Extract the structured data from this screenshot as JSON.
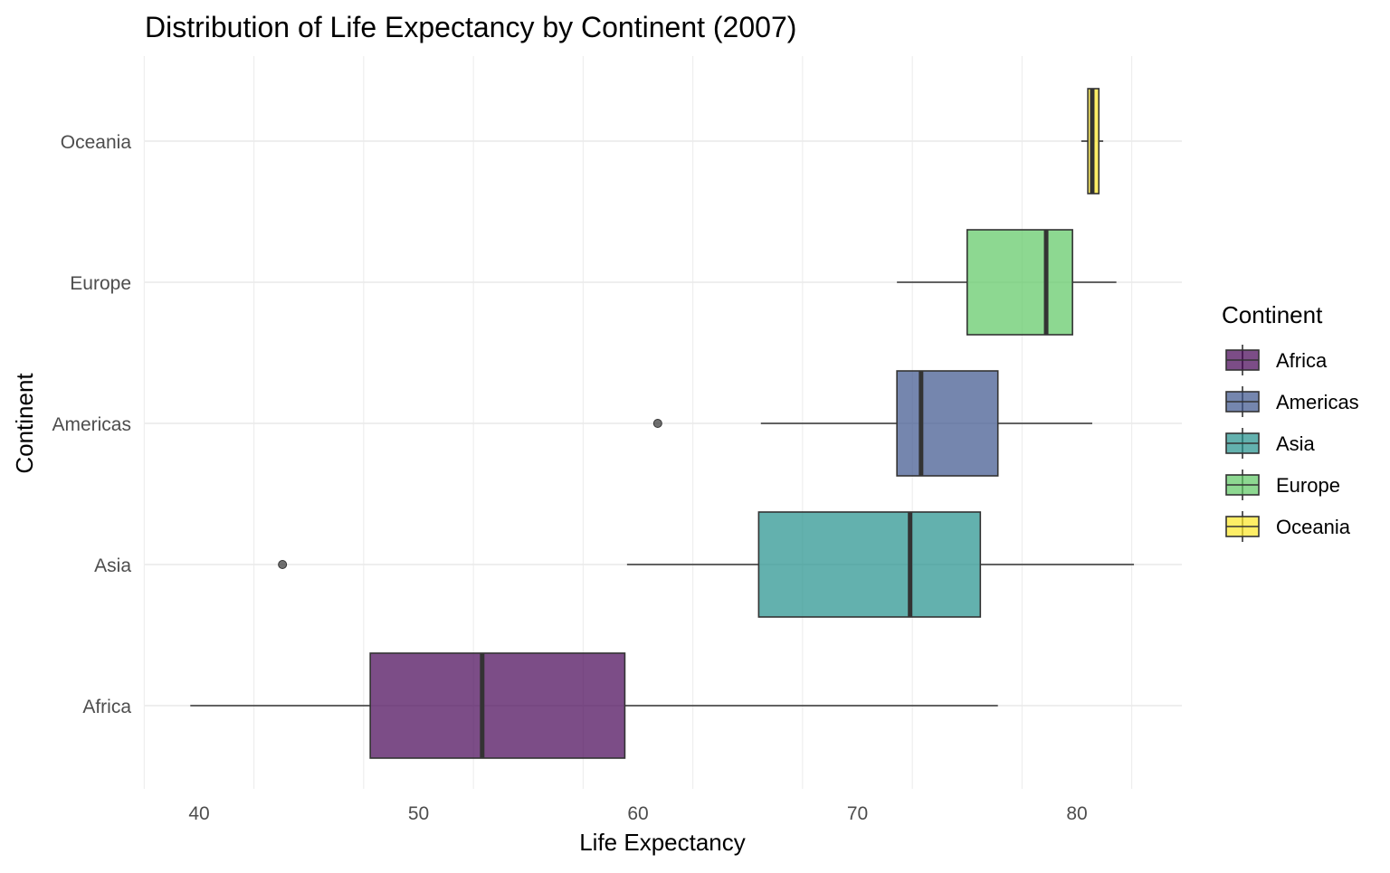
{
  "chart_data": {
    "type": "boxplot",
    "orientation": "horizontal",
    "title": "Distribution of Life Expectancy by Continent (2007)",
    "xlabel": "Life Expectancy",
    "ylabel": "Continent",
    "xlim": [
      37.5,
      85
    ],
    "xticks": [
      40,
      50,
      60,
      70,
      80
    ],
    "grid": true,
    "legend": {
      "title": "Continent",
      "position": "right",
      "entries": [
        "Africa",
        "Americas",
        "Asia",
        "Europe",
        "Oceania"
      ]
    },
    "categories": [
      "Africa",
      "Asia",
      "Americas",
      "Europe",
      "Oceania"
    ],
    "series": [
      {
        "name": "Africa",
        "color": "#440154",
        "whisker_low": 39.6,
        "q1": 47.8,
        "median": 52.9,
        "q3": 59.4,
        "whisker_high": 76.4,
        "outliers": []
      },
      {
        "name": "Asia",
        "color": "#21908C",
        "whisker_low": 59.5,
        "q1": 65.5,
        "median": 72.4,
        "q3": 75.6,
        "whisker_high": 82.6,
        "outliers": [
          43.8
        ]
      },
      {
        "name": "Americas",
        "color": "#3B528B",
        "whisker_low": 65.6,
        "q1": 71.8,
        "median": 72.9,
        "q3": 76.4,
        "whisker_high": 80.7,
        "outliers": [
          60.9
        ]
      },
      {
        "name": "Europe",
        "color": "#5DC863",
        "whisker_low": 71.8,
        "q1": 75.0,
        "median": 78.6,
        "q3": 79.8,
        "whisker_high": 81.8,
        "outliers": []
      },
      {
        "name": "Oceania",
        "color": "#FDE725",
        "whisker_low": 80.2,
        "q1": 80.5,
        "median": 80.7,
        "q3": 81.0,
        "whisker_high": 81.2,
        "outliers": []
      }
    ]
  }
}
